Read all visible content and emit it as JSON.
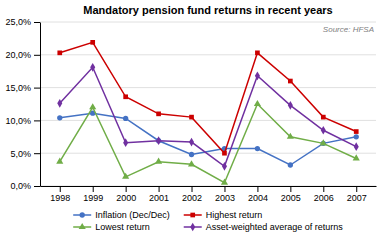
{
  "chart_data": {
    "type": "line",
    "title": "Mandatory pension fund returns in recent years",
    "annotations": [
      "Source: HFSA"
    ],
    "x": [
      1998,
      1999,
      2000,
      2001,
      2002,
      2003,
      2004,
      2005,
      2006,
      2007
    ],
    "series": [
      {
        "name": "Inflation (Dec/Dec)",
        "color": "#4472C4",
        "marker": "circle",
        "values": [
          0.104,
          0.111,
          0.103,
          0.069,
          0.048,
          0.057,
          0.057,
          0.032,
          0.065,
          0.075
        ]
      },
      {
        "name": "Highest return",
        "color": "#CC0000",
        "marker": "square",
        "values": [
          0.203,
          0.219,
          0.136,
          0.11,
          0.105,
          0.05,
          0.203,
          0.16,
          0.105,
          0.083
        ]
      },
      {
        "name": "Lowest return",
        "color": "#70AD47",
        "marker": "triangle",
        "values": [
          0.037,
          0.12,
          0.014,
          0.037,
          0.033,
          0.005,
          0.125,
          0.075,
          0.065,
          0.042
        ]
      },
      {
        "name": "Asset-weighted average of returns",
        "color": "#7030A0",
        "marker": "diamond",
        "values": [
          0.126,
          0.181,
          0.066,
          0.069,
          0.067,
          0.03,
          0.168,
          0.123,
          0.085,
          0.06
        ]
      }
    ],
    "xlim": [
      1997.4,
      2007.6
    ],
    "xticks": [
      1998,
      1999,
      2000,
      2001,
      2002,
      2003,
      2004,
      2005,
      2006,
      2007
    ],
    "ylim": [
      0.0,
      0.25
    ],
    "yticks": [
      {
        "value": 0.0,
        "label": "0,0%"
      },
      {
        "value": 0.05,
        "label": "5,0%"
      },
      {
        "value": 0.1,
        "label": "10,0%"
      },
      {
        "value": 0.15,
        "label": "15,0%"
      },
      {
        "value": 0.2,
        "label": "20,0%"
      },
      {
        "value": 0.25,
        "label": "25,0%"
      }
    ],
    "grid": "y",
    "legend": "bottom"
  }
}
